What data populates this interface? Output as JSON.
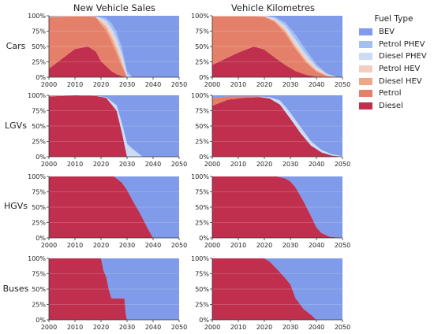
{
  "column_titles": [
    "New Vehicle Sales",
    "Vehicle Kilometres"
  ],
  "row_labels": [
    "Cars",
    "LGVs",
    "HGVs",
    "Buses"
  ],
  "legend": {
    "title": "Fuel Type",
    "items": [
      {
        "label": "BEV",
        "color": "#7f9be9"
      },
      {
        "label": "Petrol PHEV",
        "color": "#a4bff2"
      },
      {
        "label": "Diesel PHEV",
        "color": "#cbdcf4"
      },
      {
        "label": "Petrol HEV",
        "color": "#f1cfc0"
      },
      {
        "label": "Diesel HEV",
        "color": "#efa787"
      },
      {
        "label": "Petrol",
        "color": "#e4806a"
      },
      {
        "label": "Diesel",
        "color": "#c0304e"
      }
    ]
  },
  "chart_data": [
    {
      "type": "area",
      "row": "Cars",
      "column": "New Vehicle Sales",
      "x": [
        2000,
        2010,
        2015,
        2018,
        2020,
        2022,
        2024,
        2026,
        2028,
        2030,
        2032,
        2050
      ],
      "xlim": [
        2000,
        2050
      ],
      "ylim": [
        0,
        100
      ],
      "yformat": "percent",
      "series": [
        {
          "name": "Diesel",
          "values": [
            14,
            46,
            50,
            42,
            26,
            18,
            10,
            5,
            2,
            0,
            0,
            0
          ]
        },
        {
          "name": "Petrol",
          "values": [
            84,
            53,
            49,
            56,
            60,
            58,
            48,
            34,
            16,
            0,
            0,
            0
          ]
        },
        {
          "name": "Diesel HEV",
          "values": [
            0,
            0,
            0,
            0,
            4,
            6,
            8,
            8,
            6,
            0,
            0,
            0
          ]
        },
        {
          "name": "Petrol HEV",
          "values": [
            1,
            1,
            1,
            1,
            4,
            6,
            8,
            8,
            6,
            0,
            0,
            0
          ]
        },
        {
          "name": "Diesel PHEV",
          "values": [
            0,
            0,
            0,
            0,
            2,
            4,
            6,
            8,
            8,
            4,
            0,
            0
          ]
        },
        {
          "name": "Petrol PHEV",
          "values": [
            0,
            0,
            0,
            0,
            2,
            4,
            8,
            10,
            10,
            6,
            0,
            0
          ]
        },
        {
          "name": "BEV",
          "values": [
            1,
            0,
            0,
            1,
            2,
            4,
            12,
            27,
            52,
            90,
            100,
            100
          ]
        }
      ]
    },
    {
      "type": "area",
      "row": "Cars",
      "column": "Vehicle Kilometres",
      "x": [
        2000,
        2010,
        2016,
        2020,
        2024,
        2028,
        2032,
        2036,
        2040,
        2044,
        2048,
        2050
      ],
      "xlim": [
        2000,
        2050
      ],
      "ylim": [
        0,
        100
      ],
      "yformat": "percent",
      "series": [
        {
          "name": "Diesel",
          "values": [
            20,
            40,
            50,
            45,
            32,
            20,
            10,
            4,
            1,
            0,
            0,
            0
          ]
        },
        {
          "name": "Petrol",
          "values": [
            79,
            59,
            49,
            53,
            58,
            52,
            36,
            20,
            8,
            2,
            0,
            0
          ]
        },
        {
          "name": "Diesel HEV",
          "values": [
            0,
            0,
            0,
            1,
            2,
            4,
            4,
            3,
            2,
            1,
            0,
            0
          ]
        },
        {
          "name": "Petrol HEV",
          "values": [
            1,
            1,
            1,
            1,
            2,
            4,
            5,
            5,
            3,
            1,
            0,
            0
          ]
        },
        {
          "name": "Diesel PHEV",
          "values": [
            0,
            0,
            0,
            0,
            2,
            4,
            6,
            5,
            3,
            1,
            0,
            0
          ]
        },
        {
          "name": "Petrol PHEV",
          "values": [
            0,
            0,
            0,
            0,
            2,
            5,
            8,
            7,
            4,
            1,
            0,
            0
          ]
        },
        {
          "name": "BEV",
          "values": [
            0,
            0,
            0,
            0,
            2,
            11,
            31,
            56,
            79,
            94,
            100,
            100
          ]
        }
      ]
    },
    {
      "type": "area",
      "row": "LGVs",
      "column": "New Vehicle Sales",
      "x": [
        2000,
        2010,
        2018,
        2022,
        2026,
        2028,
        2030,
        2032,
        2036,
        2050
      ],
      "xlim": [
        2000,
        2050
      ],
      "ylim": [
        0,
        100
      ],
      "yformat": "percent",
      "series": [
        {
          "name": "Diesel",
          "values": [
            98,
            100,
            99,
            96,
            75,
            40,
            0,
            0,
            0,
            0
          ]
        },
        {
          "name": "Petrol",
          "values": [
            1,
            0,
            0,
            0,
            0,
            0,
            0,
            0,
            0,
            0
          ]
        },
        {
          "name": "Diesel PHEV",
          "values": [
            0,
            0,
            0,
            1,
            8,
            14,
            20,
            12,
            0,
            0
          ]
        },
        {
          "name": "Petrol PHEV",
          "values": [
            0,
            0,
            0,
            0,
            1,
            2,
            2,
            2,
            0,
            0
          ]
        },
        {
          "name": "BEV",
          "values": [
            1,
            0,
            1,
            3,
            16,
            44,
            78,
            86,
            100,
            100
          ]
        }
      ]
    },
    {
      "type": "area",
      "row": "LGVs",
      "column": "Vehicle Kilometres",
      "x": [
        2000,
        2006,
        2012,
        2018,
        2022,
        2026,
        2030,
        2034,
        2038,
        2042,
        2046,
        2050
      ],
      "xlim": [
        2000,
        2050
      ],
      "ylim": [
        0,
        100
      ],
      "yformat": "percent",
      "series": [
        {
          "name": "Diesel",
          "values": [
            83,
            93,
            96,
            97,
            95,
            85,
            62,
            38,
            18,
            7,
            2,
            0
          ]
        },
        {
          "name": "Petrol",
          "values": [
            13,
            5,
            2,
            1,
            0,
            0,
            0,
            0,
            0,
            0,
            0,
            0
          ]
        },
        {
          "name": "Diesel PHEV",
          "values": [
            0,
            0,
            0,
            0,
            2,
            6,
            9,
            9,
            6,
            4,
            2,
            1
          ]
        },
        {
          "name": "Petrol PHEV",
          "values": [
            0,
            0,
            0,
            0,
            0,
            1,
            1,
            1,
            1,
            0,
            0,
            0
          ]
        },
        {
          "name": "BEV",
          "values": [
            4,
            2,
            2,
            2,
            3,
            8,
            28,
            52,
            75,
            89,
            96,
            99
          ]
        }
      ]
    },
    {
      "type": "area",
      "row": "HGVs",
      "column": "New Vehicle Sales",
      "x": [
        2000,
        2025,
        2028,
        2030,
        2032,
        2035,
        2038,
        2040,
        2050
      ],
      "xlim": [
        2000,
        2050
      ],
      "ylim": [
        0,
        100
      ],
      "yformat": "percent",
      "series": [
        {
          "name": "Diesel",
          "values": [
            100,
            100,
            90,
            78,
            62,
            40,
            15,
            0,
            0
          ]
        },
        {
          "name": "BEV",
          "values": [
            0,
            0,
            10,
            22,
            38,
            60,
            85,
            100,
            100
          ]
        }
      ]
    },
    {
      "type": "area",
      "row": "HGVs",
      "column": "Vehicle Kilometres",
      "x": [
        2000,
        2025,
        2028,
        2030,
        2032,
        2035,
        2038,
        2040,
        2042,
        2045,
        2050
      ],
      "xlim": [
        2000,
        2050
      ],
      "ylim": [
        0,
        100
      ],
      "yformat": "percent",
      "series": [
        {
          "name": "Diesel",
          "values": [
            100,
            100,
            97,
            92,
            82,
            60,
            35,
            17,
            8,
            2,
            0
          ]
        },
        {
          "name": "BEV",
          "values": [
            0,
            0,
            3,
            8,
            18,
            40,
            65,
            83,
            92,
            98,
            100
          ]
        }
      ]
    },
    {
      "type": "area",
      "row": "Buses",
      "column": "New Vehicle Sales",
      "x": [
        2000,
        2020,
        2021,
        2022,
        2023,
        2024,
        2025,
        2029,
        2029.5,
        2030,
        2050
      ],
      "xlim": [
        2000,
        2050
      ],
      "ylim": [
        0,
        100
      ],
      "yformat": "percent",
      "series": [
        {
          "name": "Diesel",
          "values": [
            100,
            100,
            80,
            70,
            50,
            35,
            35,
            35,
            10,
            0,
            0
          ]
        },
        {
          "name": "BEV",
          "values": [
            0,
            0,
            20,
            30,
            50,
            65,
            65,
            65,
            90,
            100,
            100
          ]
        }
      ]
    },
    {
      "type": "area",
      "row": "Buses",
      "column": "Vehicle Kilometres",
      "x": [
        2000,
        2020,
        2022,
        2025,
        2028,
        2030,
        2032,
        2035,
        2038,
        2040,
        2050
      ],
      "xlim": [
        2000,
        2050
      ],
      "ylim": [
        0,
        100
      ],
      "yformat": "percent",
      "series": [
        {
          "name": "Diesel",
          "values": [
            100,
            100,
            95,
            82,
            68,
            58,
            35,
            18,
            8,
            0,
            0
          ]
        },
        {
          "name": "BEV",
          "values": [
            0,
            0,
            5,
            18,
            32,
            42,
            65,
            82,
            92,
            100,
            100
          ]
        }
      ]
    }
  ]
}
